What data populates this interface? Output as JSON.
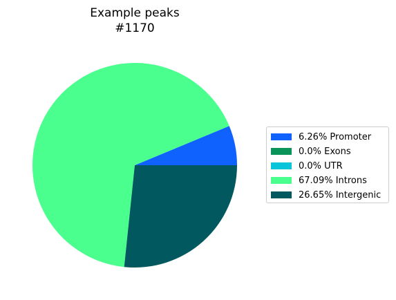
{
  "chart_data": {
    "type": "pie",
    "title_lines": [
      "Example peaks",
      "#1170"
    ],
    "slices": [
      {
        "label": "Promoter",
        "value": 6.26,
        "legend": "6.26% Promoter",
        "color": "#0f62fe"
      },
      {
        "label": "Exons",
        "value": 0.0,
        "legend": "0.0% Exons",
        "color": "#0a9459"
      },
      {
        "label": "UTR",
        "value": 0.0,
        "legend": "0.0% UTR",
        "color": "#0ac5d9"
      },
      {
        "label": "Introns",
        "value": 67.09,
        "legend": "67.09% Introns",
        "color": "#4bff8f"
      },
      {
        "label": "Intergenic",
        "value": 26.65,
        "legend": "26.65% Intergenic",
        "color": "#02585f"
      }
    ],
    "start_angle_deg": 0,
    "direction": "counterclockwise",
    "legend_position": "right"
  }
}
